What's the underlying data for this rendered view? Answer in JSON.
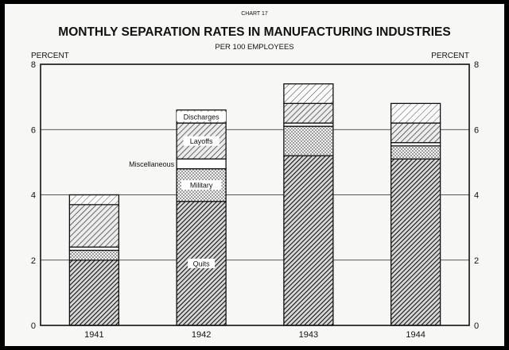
{
  "chart_data": {
    "type": "bar",
    "stacked": true,
    "chart_number": "CHART 17",
    "title": "MONTHLY SEPARATION RATES IN MANUFACTURING INDUSTRIES",
    "subtitle": "PER 100 EMPLOYEES",
    "ylabel_left": "PERCENT",
    "ylabel_right": "PERCENT",
    "ylim": [
      0,
      8
    ],
    "yticks": [
      0,
      2,
      4,
      6,
      8
    ],
    "grid": true,
    "categories": [
      "1941",
      "1942",
      "1943",
      "1944"
    ],
    "series": [
      {
        "name": "Quits",
        "values": [
          2.0,
          3.8,
          5.2,
          5.1
        ],
        "pattern": "dense-hatch"
      },
      {
        "name": "Military",
        "values": [
          0.3,
          1.0,
          0.9,
          0.4
        ],
        "pattern": "dots"
      },
      {
        "name": "Miscellaneous",
        "values": [
          0.1,
          0.3,
          0.1,
          0.1
        ],
        "pattern": "blank"
      },
      {
        "name": "Layoffs",
        "values": [
          1.3,
          1.1,
          0.6,
          0.6
        ],
        "pattern": "hatch"
      },
      {
        "name": "Discharges",
        "values": [
          0.3,
          0.4,
          0.6,
          0.6
        ],
        "pattern": "light-hatch"
      }
    ],
    "annotation_bar": "1942"
  }
}
